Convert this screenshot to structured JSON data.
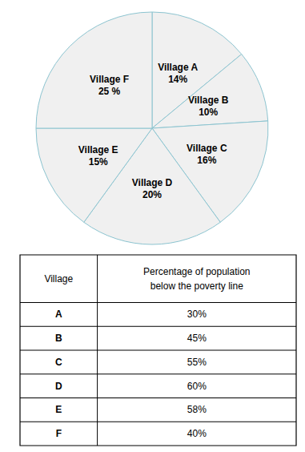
{
  "chart_data": [
    {
      "type": "pie",
      "categories": [
        "Village A",
        "Village B",
        "Village C",
        "Village D",
        "Village E",
        "Village F"
      ],
      "values": [
        14,
        10,
        16,
        20,
        15,
        25
      ],
      "value_labels": [
        "14%",
        "10%",
        "16%",
        "20%",
        "15%",
        "25 %"
      ],
      "colors": [
        "#f0f0f0",
        "#f0f0f0",
        "#f0f0f0",
        "#f0f0f0",
        "#f0f0f0",
        "#f0f0f0"
      ]
    },
    {
      "type": "table",
      "columns": [
        "Village",
        "Percentage of population\nbelow the poverty line"
      ],
      "categories": [
        "A",
        "B",
        "C",
        "D",
        "E",
        "F"
      ],
      "values": [
        30,
        45,
        55,
        60,
        58,
        40
      ],
      "value_labels": [
        "30%",
        "45%",
        "55%",
        "60%",
        "58%",
        "40%"
      ]
    }
  ]
}
